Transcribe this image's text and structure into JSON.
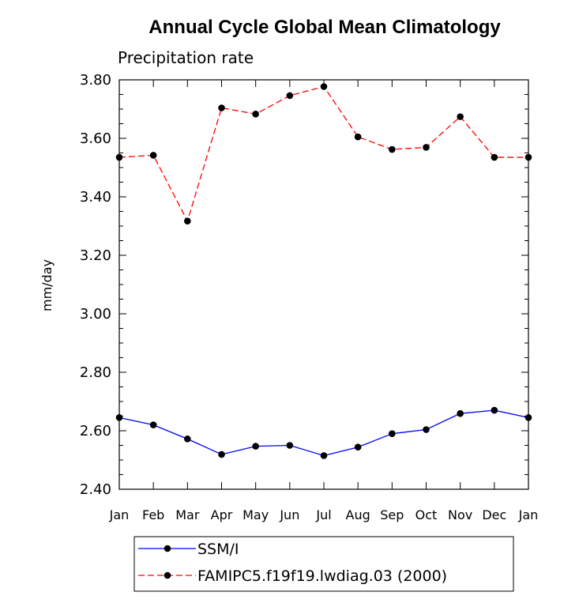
{
  "chart_data": {
    "type": "line",
    "title": "Annual Cycle Global Mean Climatology",
    "subtitle": "Precipitation rate",
    "ylabel": "mm/day",
    "xlabel": "",
    "categories": [
      "Jan",
      "Feb",
      "Mar",
      "Apr",
      "May",
      "Jun",
      "Jul",
      "Aug",
      "Sep",
      "Oct",
      "Nov",
      "Dec",
      "Jan"
    ],
    "ylim": [
      2.4,
      3.8
    ],
    "yticks": [
      2.4,
      2.6,
      2.8,
      3.0,
      3.2,
      3.4,
      3.6,
      3.8
    ],
    "ytick_labels": [
      "2.40",
      "2.60",
      "2.80",
      "3.00",
      "3.20",
      "3.40",
      "3.60",
      "3.80"
    ],
    "minor_per_major": 4,
    "grid": false,
    "legend_position": "bottom",
    "series": [
      {
        "name": "SSM/I",
        "color": "#0000ff",
        "dash": "solid",
        "values": [
          2.645,
          2.62,
          2.572,
          2.519,
          2.547,
          2.55,
          2.515,
          2.544,
          2.59,
          2.604,
          2.659,
          2.67,
          2.645
        ]
      },
      {
        "name": "FAMIPC5.f19f19.lwdiag.03 (2000)",
        "color": "#ff0000",
        "dash": "dashed",
        "values": [
          3.535,
          3.542,
          3.317,
          3.704,
          3.683,
          3.746,
          3.777,
          3.605,
          3.562,
          3.569,
          3.674,
          3.535,
          3.535
        ]
      }
    ]
  }
}
